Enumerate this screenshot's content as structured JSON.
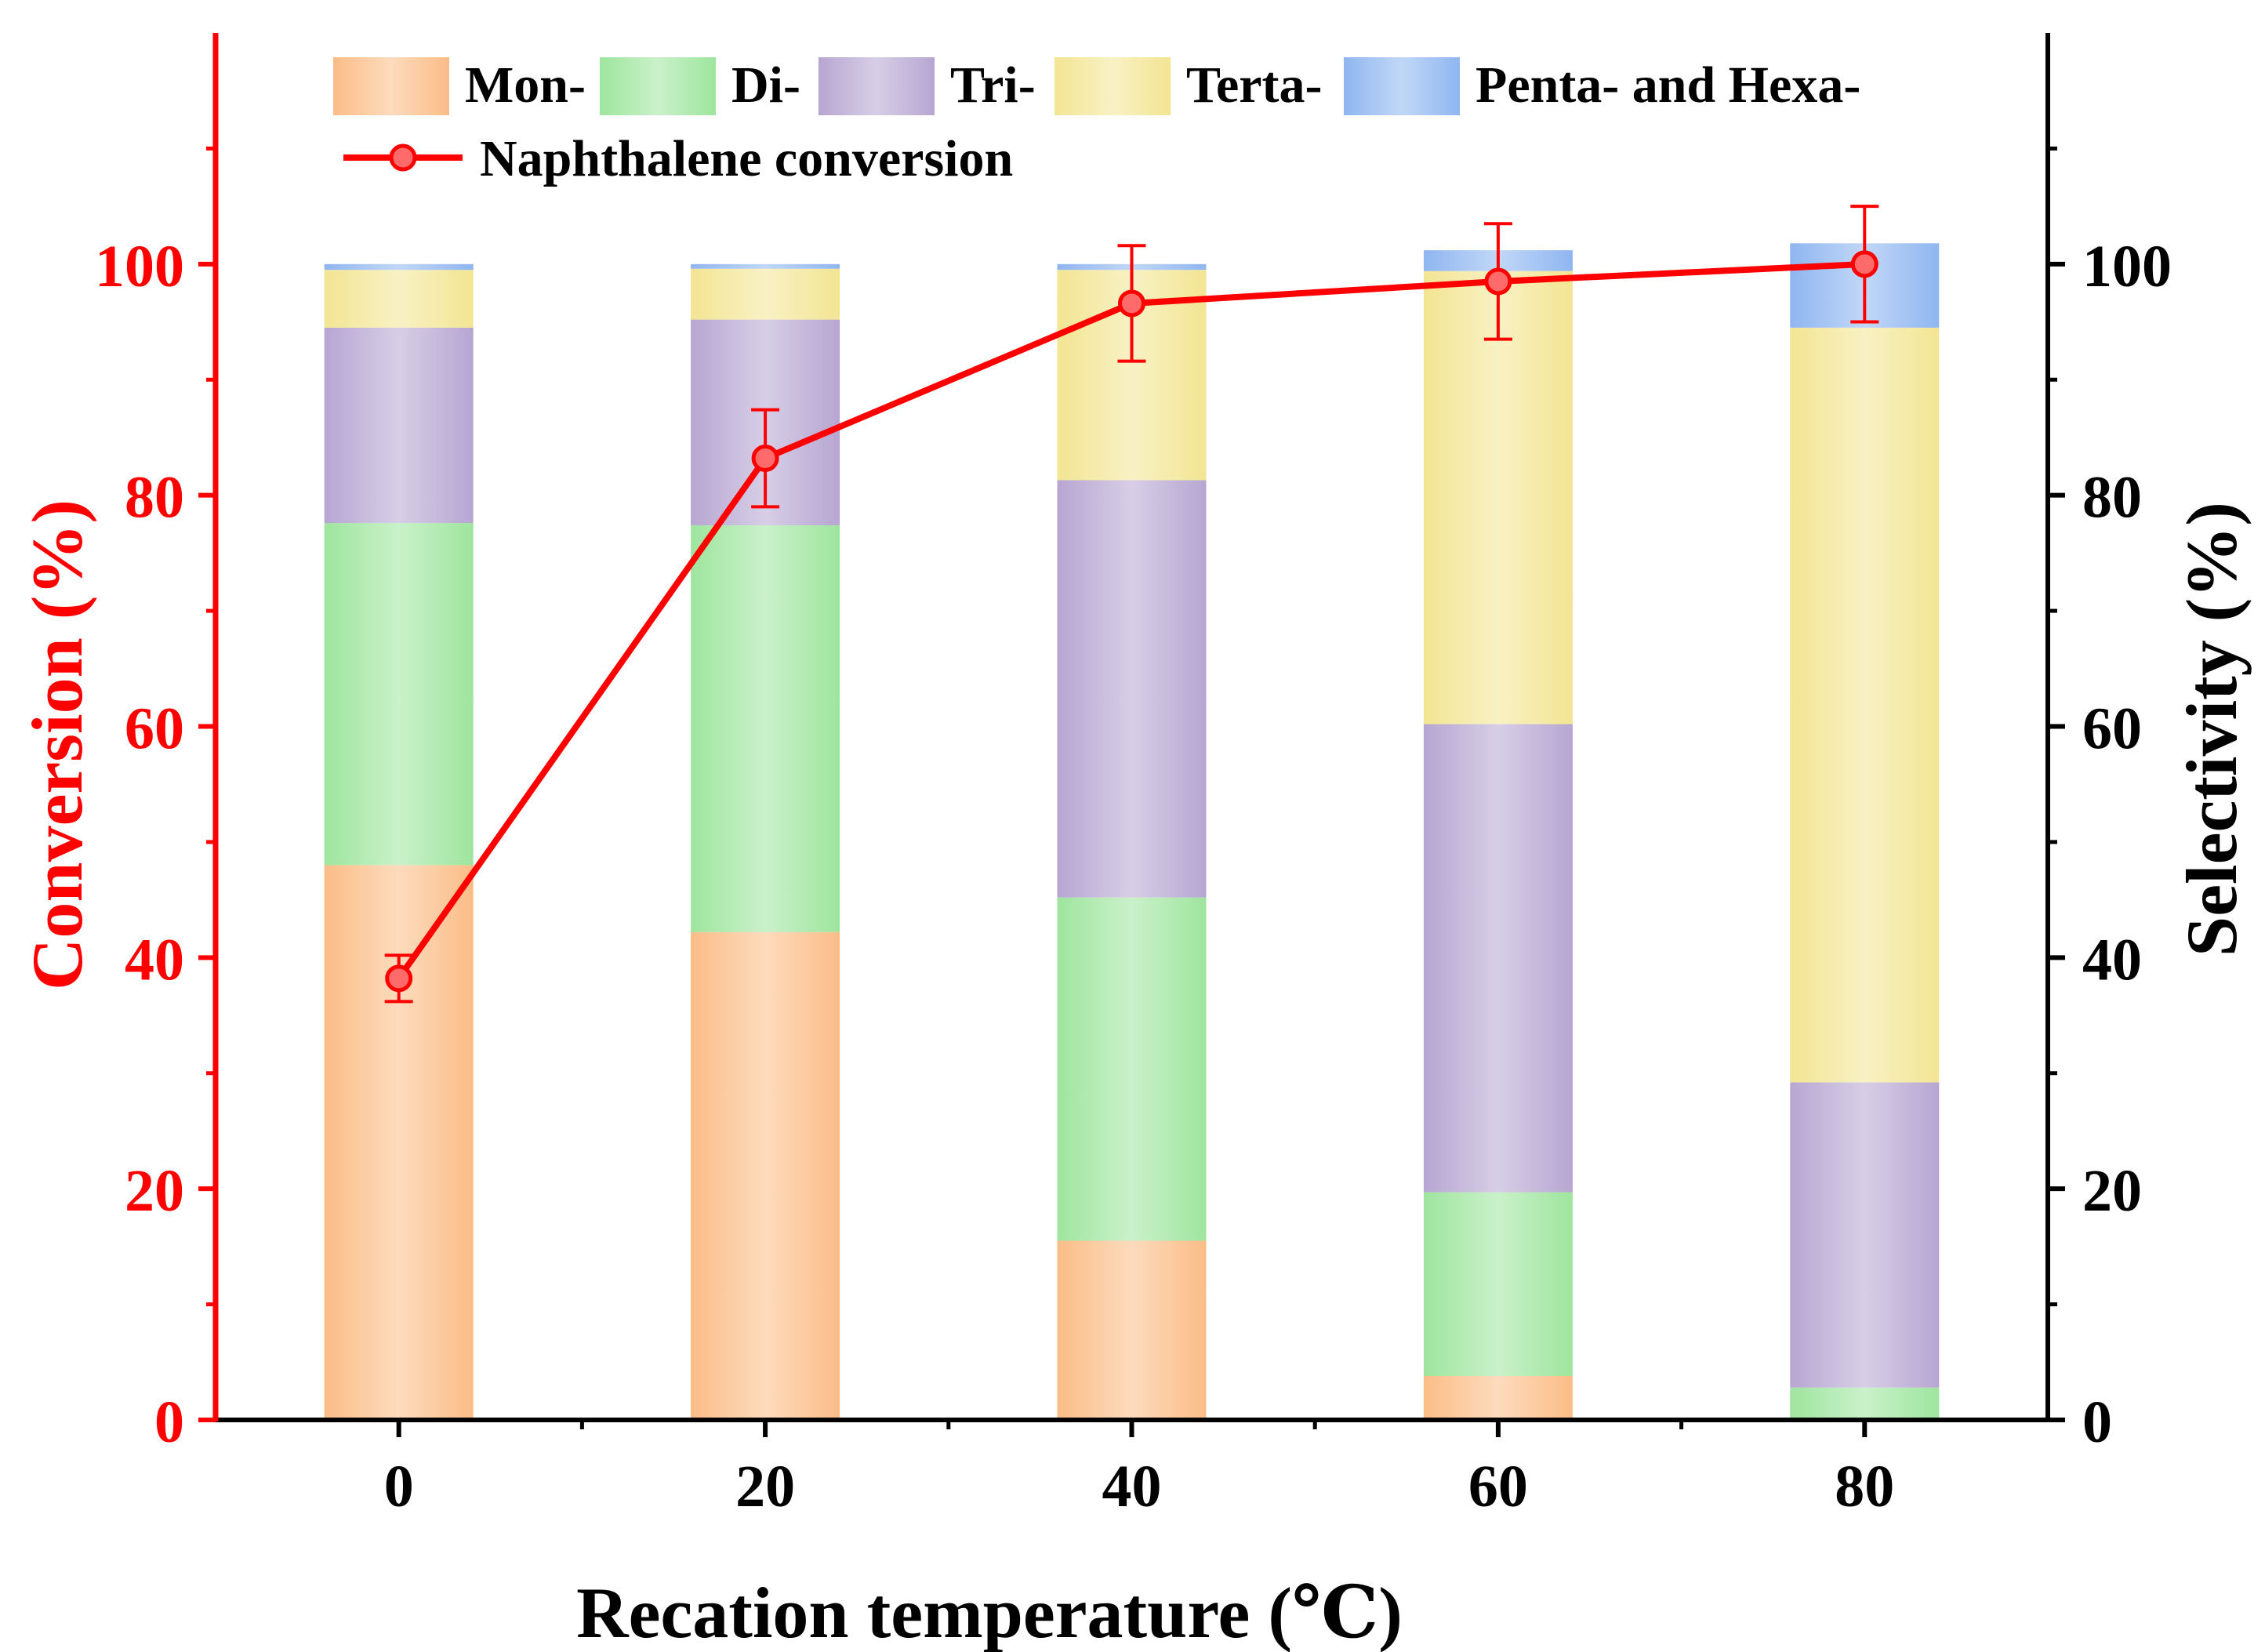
{
  "chart_data": {
    "type": "bar",
    "subtype": "stacked-bar-with-line",
    "categories": [
      "0",
      "20",
      "40",
      "60",
      "80"
    ],
    "xlabel": "Recation temperature (℃)",
    "ylabel_left": "Conversion (%)",
    "ylabel_right": "Selectivity (%)",
    "xlim": [
      -10,
      90
    ],
    "ylim_left": [
      0,
      120
    ],
    "ylim_right": [
      0,
      120
    ],
    "yticks": [
      0,
      20,
      40,
      60,
      80,
      100
    ],
    "xticks": [
      0,
      20,
      40,
      60,
      80
    ],
    "series": [
      {
        "name": "Mon-",
        "axis": "right",
        "color": "#fbbd87",
        "values": [
          48.0,
          42.2,
          15.5,
          3.8,
          0.0
        ]
      },
      {
        "name": "Di-",
        "axis": "right",
        "color": "#9ee59e",
        "values": [
          29.6,
          35.2,
          29.7,
          15.9,
          2.8
        ]
      },
      {
        "name": "Tri-",
        "axis": "right",
        "color": "#b7a6d2",
        "values": [
          16.9,
          17.8,
          36.1,
          40.5,
          26.4
        ]
      },
      {
        "name": "Terta-",
        "axis": "right",
        "color": "#f3e593",
        "values": [
          5.0,
          4.4,
          18.2,
          39.2,
          65.3
        ]
      },
      {
        "name": "Penta- and Hexa-",
        "axis": "right",
        "color": "#8fb6f0",
        "values": [
          0.5,
          0.4,
          0.5,
          1.8,
          7.3
        ]
      }
    ],
    "line": {
      "name": "Naphthalene conversion",
      "axis": "left",
      "color": "#ff0000",
      "x": [
        0,
        20,
        40,
        60,
        80
      ],
      "y": [
        38.2,
        83.2,
        96.6,
        98.5,
        100.0
      ],
      "error": [
        2.0,
        4.2,
        5.0,
        5.0,
        5.0
      ]
    },
    "legend": {
      "placement": "top-inside",
      "items": [
        "Mon-",
        "Di-",
        "Tri-",
        "Terta-",
        "Penta- and Hexa-",
        "Naphthalene conversion"
      ]
    },
    "colors": {
      "left_axis": "#ff0000",
      "right_axis": "#000000"
    }
  }
}
